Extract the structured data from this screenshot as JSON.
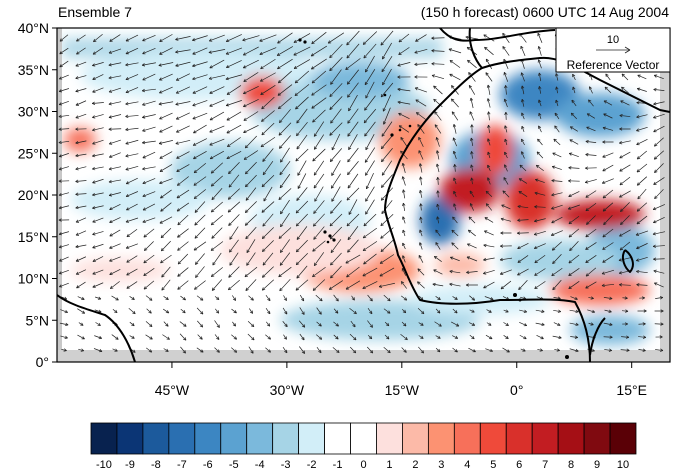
{
  "header": {
    "left_title": "Ensemble 7",
    "right_title": "(150 h forecast) 0600 UTC 14 Aug 2004"
  },
  "reference_vector": {
    "magnitude_label": "10",
    "caption": "Reference Vector"
  },
  "map": {
    "lat_labels": [
      "0°",
      "5°N",
      "10°N",
      "15°N",
      "20°N",
      "25°N",
      "30°N",
      "35°N",
      "40°N"
    ],
    "lat_values": [
      0,
      5,
      10,
      15,
      20,
      25,
      30,
      35,
      40
    ],
    "lon_labels": [
      "45°W",
      "30°W",
      "15°W",
      "0°",
      "15°E"
    ],
    "lon_values": [
      -45,
      -30,
      -15,
      0,
      15
    ],
    "lon_range": [
      -60,
      20
    ],
    "lat_range": [
      0,
      40
    ],
    "features": [
      "temperature-anomaly-shading",
      "wind-vectors",
      "coastlines"
    ]
  },
  "colorbar": {
    "labels": [
      "-10",
      "-9",
      "-8",
      "-7",
      "-6",
      "-5",
      "-4",
      "-3",
      "-2",
      "-1",
      "0",
      "1",
      "2",
      "3",
      "4",
      "5",
      "6",
      "7",
      "8",
      "9",
      "10"
    ],
    "colors": [
      "#08224f",
      "#0b3575",
      "#1c5a9c",
      "#2a6fb1",
      "#3c86c2",
      "#5ba2d1",
      "#7bb9dc",
      "#a6d4e6",
      "#d2eef8",
      "#ffffff",
      "#ffffff",
      "#fde0dd",
      "#fcbaa8",
      "#fc9272",
      "#f7705a",
      "#ef4a3a",
      "#d9302b",
      "#c21d22",
      "#a50f15",
      "#800a10",
      "#5a0006"
    ]
  }
}
